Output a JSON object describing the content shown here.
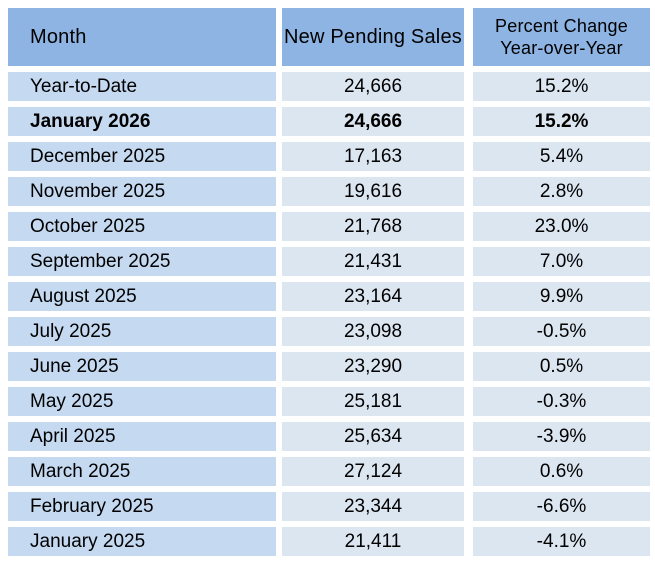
{
  "colors": {
    "header_bg": "#8DB4E2",
    "month_cell_bg": "#C5D9F1",
    "value_cell_bg": "#DCE6F1",
    "gutter": "#FFFFFF",
    "text": "#000000"
  },
  "table": {
    "columns": [
      {
        "label": "Month"
      },
      {
        "label": "New Pending Sales"
      },
      {
        "line1": "Percent Change",
        "line2": "Year-over-Year"
      }
    ],
    "rows": [
      {
        "month": "Year-to-Date",
        "sales": "24,666",
        "pct": "15.2%",
        "bold": false
      },
      {
        "month": "January 2026",
        "sales": "24,666",
        "pct": "15.2%",
        "bold": true
      },
      {
        "month": "December 2025",
        "sales": "17,163",
        "pct": "5.4%",
        "bold": false
      },
      {
        "month": "November 2025",
        "sales": "19,616",
        "pct": "2.8%",
        "bold": false
      },
      {
        "month": "October 2025",
        "sales": "21,768",
        "pct": "23.0%",
        "bold": false
      },
      {
        "month": "September 2025",
        "sales": "21,431",
        "pct": "7.0%",
        "bold": false
      },
      {
        "month": "August 2025",
        "sales": "23,164",
        "pct": "9.9%",
        "bold": false
      },
      {
        "month": "July 2025",
        "sales": "23,098",
        "pct": "-0.5%",
        "bold": false
      },
      {
        "month": "June 2025",
        "sales": "23,290",
        "pct": "0.5%",
        "bold": false
      },
      {
        "month": "May 2025",
        "sales": "25,181",
        "pct": "-0.3%",
        "bold": false
      },
      {
        "month": "April 2025",
        "sales": "25,634",
        "pct": "-3.9%",
        "bold": false
      },
      {
        "month": "March 2025",
        "sales": "27,124",
        "pct": "0.6%",
        "bold": false
      },
      {
        "month": "February 2025",
        "sales": "23,344",
        "pct": "-6.6%",
        "bold": false
      },
      {
        "month": "January 2025",
        "sales": "21,411",
        "pct": "-4.1%",
        "bold": false
      }
    ]
  },
  "chart_data": {
    "type": "table",
    "title": "",
    "columns": [
      "Month",
      "New Pending Sales",
      "Percent Change Year-over-Year"
    ],
    "rows": [
      [
        "Year-to-Date",
        24666,
        "15.2%"
      ],
      [
        "January 2026",
        24666,
        "15.2%"
      ],
      [
        "December 2025",
        17163,
        "5.4%"
      ],
      [
        "November 2025",
        19616,
        "2.8%"
      ],
      [
        "October 2025",
        21768,
        "23.0%"
      ],
      [
        "September 2025",
        21431,
        "7.0%"
      ],
      [
        "August 2025",
        23164,
        "9.9%"
      ],
      [
        "July 2025",
        23098,
        "-0.5%"
      ],
      [
        "June 2025",
        23290,
        "0.5%"
      ],
      [
        "May 2025",
        25181,
        "-0.3%"
      ],
      [
        "April 2025",
        25634,
        "-3.9%"
      ],
      [
        "March 2025",
        27124,
        "0.6%"
      ],
      [
        "February 2025",
        23344,
        "-6.6%"
      ],
      [
        "January 2025",
        21411,
        "-4.1%"
      ]
    ],
    "notes": "January 2026 row rendered bold; layout hints: header blue #8DB4E2, month column #C5D9F1, value columns #DCE6F1, white gutters"
  }
}
